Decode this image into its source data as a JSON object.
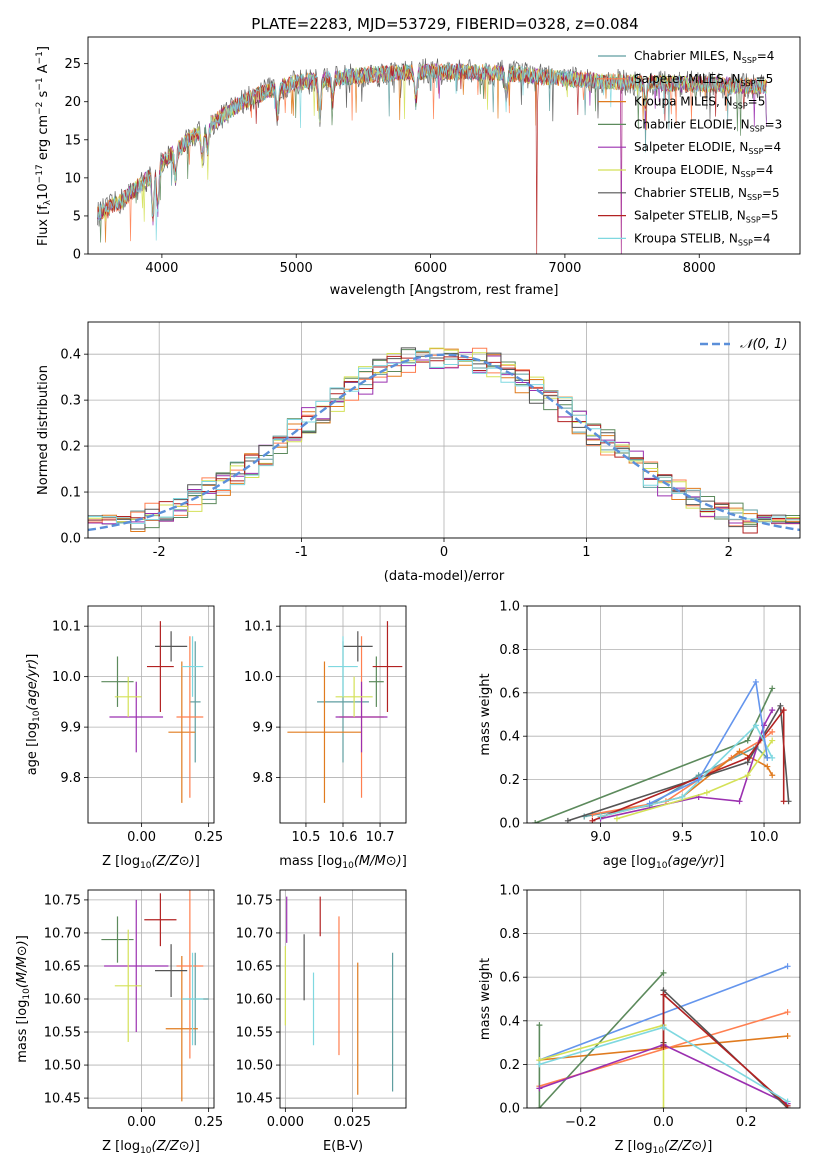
{
  "figure": {
    "title": "PLATE=2283, MJD=53729, FIBERID=0328, z=0.084"
  },
  "legend_models": [
    {
      "label": "Chabrier MILES, N",
      "sub": "SSP",
      "suffix": "=4",
      "color": "#5f9ea0"
    },
    {
      "label": "Salpeter MILES, N",
      "sub": "SSP",
      "suffix": "=5",
      "color": "#ff7f50"
    },
    {
      "label": "Kroupa MILES, N",
      "sub": "SSP",
      "suffix": "=5",
      "color": "#e07b1f"
    },
    {
      "label": "Chabrier ELODIE, N",
      "sub": "SSP",
      "suffix": "=3",
      "color": "#5c8a5c"
    },
    {
      "label": "Salpeter ELODIE, N",
      "sub": "SSP",
      "suffix": "=4",
      "color": "#9b30b0"
    },
    {
      "label": "Kroupa ELODIE, N",
      "sub": "SSP",
      "suffix": "=4",
      "color": "#d4e157"
    },
    {
      "label": "Chabrier STELIB, N",
      "sub": "SSP",
      "suffix": "=5",
      "color": "#555555"
    },
    {
      "label": "Salpeter STELIB, N",
      "sub": "SSP",
      "suffix": "=5",
      "color": "#b22222"
    },
    {
      "label": "Kroupa STELIB, N",
      "sub": "SSP",
      "suffix": "=4",
      "color": "#7fd8e0"
    }
  ],
  "chart_data": [
    {
      "id": "spectrum",
      "type": "line",
      "xlabel": "wavelength [Angstrom, rest frame]",
      "ylabel_parts": [
        "Flux [f",
        "λ",
        "10",
        "−17",
        " erg cm",
        "−2",
        " s",
        "−1",
        " A",
        "−1",
        "]"
      ],
      "xlim": [
        3450,
        8750
      ],
      "ylim": [
        0,
        28.5
      ],
      "xticks": [
        4000,
        5000,
        6000,
        7000,
        8000
      ],
      "yticks": [
        0,
        5,
        10,
        15,
        20,
        25
      ],
      "continuum_knots": [
        [
          3500,
          5.0
        ],
        [
          3700,
          7.0
        ],
        [
          3900,
          10.0
        ],
        [
          4000,
          12.0
        ],
        [
          4200,
          15.0
        ],
        [
          4400,
          17.5
        ],
        [
          4600,
          20.0
        ],
        [
          4800,
          21.5
        ],
        [
          5000,
          22.5
        ],
        [
          5500,
          23.5
        ],
        [
          6000,
          24.0
        ],
        [
          6500,
          23.8
        ],
        [
          7000,
          23.0
        ],
        [
          7500,
          22.5
        ],
        [
          8000,
          22.3
        ],
        [
          8500,
          22.0
        ]
      ],
      "absorption_lines": [
        [
          3934,
          6.0
        ],
        [
          3969,
          5.5
        ],
        [
          4102,
          3.5
        ],
        [
          4300,
          4.0
        ],
        [
          4340,
          3.0
        ],
        [
          4861,
          3.5
        ],
        [
          5175,
          5.0
        ],
        [
          5270,
          3.0
        ],
        [
          5890,
          4.0
        ],
        [
          6563,
          3.0
        ],
        [
          7600,
          3.0
        ]
      ],
      "drops_to_zero": [
        3915,
        6790,
        7420
      ],
      "grid": false
    },
    {
      "id": "residuals",
      "type": "histogram",
      "xlabel": "(data-model)/error",
      "ylabel": "Normed distribution",
      "xlim": [
        -2.5,
        2.5
      ],
      "ylim": [
        0,
        0.47
      ],
      "xticks": [
        -2,
        -1,
        0,
        1,
        2
      ],
      "yticks": [
        0.0,
        0.1,
        0.2,
        0.3,
        0.4
      ],
      "bin_width": 0.1,
      "reference_curve": "N(0,1)",
      "legend": "𝒩(0, 1)",
      "legend_position": "top-right",
      "grid": true
    },
    {
      "id": "age-vs-Z",
      "type": "scatter",
      "xlabel": "Z [log10(Z/Z⊙)]",
      "ylabel": "age  [log10(age/yr)]",
      "xlim": [
        -0.2,
        0.27
      ],
      "ylim": [
        9.71,
        10.14
      ],
      "xticks": [
        0.0,
        0.25
      ],
      "xticklabels": [
        "0.00",
        "0.25"
      ],
      "yticks": [
        9.8,
        9.9,
        10.0,
        10.1
      ],
      "points": [
        {
          "model": "Chabrier MILES",
          "x": 0.2,
          "y": 9.95,
          "xerr": 0.02,
          "yerr": 0.12
        },
        {
          "model": "Kroupa MILES",
          "x": 0.15,
          "y": 9.89,
          "xerr": 0.05,
          "yerr": 0.14
        },
        {
          "model": "Salpeter MILES",
          "x": 0.18,
          "y": 9.92,
          "xerr": 0.05,
          "yerr": 0.16
        },
        {
          "model": "Chabrier ELODIE",
          "x": -0.09,
          "y": 9.99,
          "xerr": 0.06,
          "yerr": 0.05
        },
        {
          "model": "Salpeter ELODIE",
          "x": -0.02,
          "y": 9.92,
          "xerr": 0.1,
          "yerr": 0.07
        },
        {
          "model": "Kroupa ELODIE",
          "x": -0.05,
          "y": 9.96,
          "xerr": 0.05,
          "yerr": 0.04
        },
        {
          "model": "Chabrier STELIB",
          "x": 0.11,
          "y": 10.06,
          "xerr": 0.06,
          "yerr": 0.03
        },
        {
          "model": "Salpeter STELIB",
          "x": 0.07,
          "y": 10.02,
          "xerr": 0.05,
          "yerr": 0.09
        },
        {
          "model": "Kroupa STELIB",
          "x": 0.19,
          "y": 10.02,
          "xerr": 0.04,
          "yerr": 0.06
        }
      ],
      "grid": true
    },
    {
      "id": "age-vs-mass",
      "type": "scatter",
      "xlabel": "mass [log10(M/M⊙)]",
      "ylabel": "",
      "xlim": [
        10.43,
        10.77
      ],
      "ylim": [
        9.71,
        10.14
      ],
      "xticks": [
        10.5,
        10.6,
        10.7
      ],
      "xticklabels": [
        "10.5",
        "10.6",
        "10.7"
      ],
      "yticks": [
        9.8,
        9.9,
        10.0,
        10.1
      ],
      "points": [
        {
          "model": "Chabrier MILES",
          "x": 10.6,
          "y": 9.95,
          "xerr": 0.07,
          "yerr": 0.12
        },
        {
          "model": "Kroupa MILES",
          "x": 10.55,
          "y": 9.89,
          "xerr": 0.1,
          "yerr": 0.14
        },
        {
          "model": "Salpeter MILES",
          "x": 10.65,
          "y": 9.92,
          "xerr": 0.06,
          "yerr": 0.16
        },
        {
          "model": "Chabrier ELODIE",
          "x": 10.69,
          "y": 9.99,
          "xerr": 0.02,
          "yerr": 0.05
        },
        {
          "model": "Salpeter ELODIE",
          "x": 10.65,
          "y": 9.92,
          "xerr": 0.07,
          "yerr": 0.07
        },
        {
          "model": "Kroupa ELODIE",
          "x": 10.63,
          "y": 9.96,
          "xerr": 0.05,
          "yerr": 0.04
        },
        {
          "model": "Chabrier STELIB",
          "x": 10.64,
          "y": 10.06,
          "xerr": 0.04,
          "yerr": 0.03
        },
        {
          "model": "Salpeter STELIB",
          "x": 10.72,
          "y": 10.02,
          "xerr": 0.04,
          "yerr": 0.09
        },
        {
          "model": "Kroupa STELIB",
          "x": 10.6,
          "y": 10.02,
          "xerr": 0.04,
          "yerr": 0.06
        }
      ],
      "grid": true
    },
    {
      "id": "weight-vs-age",
      "type": "line",
      "xlabel": "age  [log10(age/yr)]",
      "ylabel": "mass weight",
      "xlim": [
        8.55,
        10.22
      ],
      "ylim": [
        0,
        1.0
      ],
      "xticks": [
        9.0,
        9.5,
        10.0
      ],
      "xticklabels": [
        "9.0",
        "9.5",
        "10.0"
      ],
      "yticks": [
        0.0,
        0.2,
        0.4,
        0.6,
        0.8,
        1.0
      ],
      "series": [
        {
          "model": "Chabrier MILES",
          "x": [
            8.9,
            9.3,
            9.6,
            9.95,
            10.02
          ],
          "y": [
            0.03,
            0.08,
            0.22,
            0.35,
            0.3
          ]
        },
        {
          "model": "Salpeter MILES",
          "x": [
            8.95,
            9.4,
            9.8,
            9.98,
            10.05
          ],
          "y": [
            0.04,
            0.1,
            0.3,
            0.38,
            0.42
          ]
        },
        {
          "model": "Kroupa MILES",
          "x": [
            9.0,
            9.5,
            9.85,
            10.02,
            10.05
          ],
          "y": [
            0.03,
            0.12,
            0.33,
            0.26,
            0.22
          ]
        },
        {
          "model": "Chabrier ELODIE",
          "x": [
            8.6,
            9.9,
            10.05
          ],
          "y": [
            0.0,
            0.38,
            0.62
          ]
        },
        {
          "model": "Salpeter ELODIE",
          "x": [
            9.0,
            9.6,
            9.85,
            10.0,
            10.05
          ],
          "y": [
            0.02,
            0.12,
            0.1,
            0.45,
            0.52
          ]
        },
        {
          "model": "Kroupa ELODIE",
          "x": [
            9.1,
            9.65,
            9.9,
            10.05
          ],
          "y": [
            0.02,
            0.14,
            0.22,
            0.38
          ]
        },
        {
          "model": "Chabrier STELIB",
          "x": [
            8.8,
            9.9,
            10.1,
            10.15
          ],
          "y": [
            0.01,
            0.28,
            0.54,
            0.1
          ]
        },
        {
          "model": "Salpeter STELIB",
          "x": [
            8.95,
            9.9,
            10.12,
            10.12
          ],
          "y": [
            0.01,
            0.3,
            0.52,
            0.1
          ]
        },
        {
          "model": "Kroupa STELIB",
          "x": [
            9.0,
            9.5,
            9.95,
            10.05
          ],
          "y": [
            0.03,
            0.12,
            0.45,
            0.3
          ]
        },
        {
          "model": "Chabrier MILES (blue)",
          "x": [
            9.3,
            9.6,
            9.95,
            10.02
          ],
          "y": [
            0.09,
            0.2,
            0.65,
            0.3
          ]
        }
      ],
      "grid": true
    },
    {
      "id": "mass-vs-Z",
      "type": "scatter",
      "xlabel": "Z [log10(Z/Z⊙)]",
      "ylabel": "mass [log10(M/M⊙)]",
      "xlim": [
        -0.2,
        0.27
      ],
      "ylim": [
        10.435,
        10.765
      ],
      "xticks": [
        0.0,
        0.25
      ],
      "xticklabels": [
        "0.00",
        "0.25"
      ],
      "yticks": [
        10.45,
        10.5,
        10.55,
        10.6,
        10.65,
        10.7,
        10.75
      ],
      "points": [
        {
          "model": "Chabrier MILES",
          "x": 0.2,
          "y": 10.6,
          "xerr": 0.05,
          "yerr": 0.07
        },
        {
          "model": "Kroupa MILES",
          "x": 0.15,
          "y": 10.555,
          "xerr": 0.06,
          "yerr": 0.11
        },
        {
          "model": "Salpeter MILES",
          "x": 0.18,
          "y": 10.65,
          "xerr": 0.05,
          "yerr": 0.14
        },
        {
          "model": "Chabrier ELODIE",
          "x": -0.09,
          "y": 10.69,
          "xerr": 0.06,
          "yerr": 0.035
        },
        {
          "model": "Salpeter ELODIE",
          "x": -0.02,
          "y": 10.65,
          "xerr": 0.12,
          "yerr": 0.1
        },
        {
          "model": "Kroupa ELODIE",
          "x": -0.05,
          "y": 10.62,
          "xerr": 0.05,
          "yerr": 0.085
        },
        {
          "model": "Chabrier STELIB",
          "x": 0.11,
          "y": 10.643,
          "xerr": 0.06,
          "yerr": 0.04
        },
        {
          "model": "Salpeter STELIB",
          "x": 0.07,
          "y": 10.72,
          "xerr": 0.06,
          "yerr": 0.04
        },
        {
          "model": "Kroupa STELIB",
          "x": 0.19,
          "y": 10.6,
          "xerr": 0.04,
          "yerr": 0.07
        }
      ],
      "grid": true
    },
    {
      "id": "mass-vs-ebv",
      "type": "scatter",
      "xlabel": "E(B-V)",
      "ylabel": "",
      "xlim": [
        -0.002,
        0.045
      ],
      "ylim": [
        10.435,
        10.765
      ],
      "xticks": [
        0.0,
        0.025
      ],
      "xticklabels": [
        "0.000",
        "0.025"
      ],
      "yticks": [
        10.45,
        10.5,
        10.55,
        10.6,
        10.65,
        10.7,
        10.75
      ],
      "points": [
        {
          "model": "Chabrier MILES",
          "x": 0.04,
          "y": 10.565,
          "xerr": 0,
          "yerr": 0.105
        },
        {
          "model": "Kroupa MILES",
          "x": 0.027,
          "y": 10.555,
          "xerr": 0,
          "yerr": 0.1
        },
        {
          "model": "Salpeter MILES",
          "x": 0.02,
          "y": 10.62,
          "xerr": 0,
          "yerr": 0.105
        },
        {
          "model": "Salpeter ELODIE",
          "x": 0.0005,
          "y": 10.72,
          "xerr": 0,
          "yerr": 0.035
        },
        {
          "model": "Kroupa ELODIE",
          "x": 0.0,
          "y": 10.62,
          "xerr": 0,
          "yerr": 0.06
        },
        {
          "model": "Chabrier STELIB",
          "x": 0.007,
          "y": 10.648,
          "xerr": 0,
          "yerr": 0.05
        },
        {
          "model": "Salpeter STELIB",
          "x": 0.013,
          "y": 10.725,
          "xerr": 0,
          "yerr": 0.03
        },
        {
          "model": "Kroupa STELIB",
          "x": 0.0105,
          "y": 10.585,
          "xerr": 0,
          "yerr": 0.055
        }
      ],
      "grid": true
    },
    {
      "id": "weight-vs-Z",
      "type": "line",
      "xlabel": "Z [log10(Z/Z⊙)]",
      "ylabel": "mass weight",
      "xlim": [
        -0.33,
        0.33
      ],
      "ylim": [
        0,
        1.0
      ],
      "xticks": [
        -0.2,
        0.0,
        0.2
      ],
      "xticklabels": [
        "−0.2",
        "0.0",
        "0.2"
      ],
      "yticks": [
        0.0,
        0.2,
        0.4,
        0.6,
        0.8,
        1.0
      ],
      "series": [
        {
          "model": "Chabrier MILES (blue)",
          "x": [
            -0.3,
            0.3
          ],
          "y": [
            0.22,
            0.65
          ]
        },
        {
          "model": "Kroupa MILES",
          "x": [
            -0.3,
            0.3
          ],
          "y": [
            0.22,
            0.33
          ]
        },
        {
          "model": "Salpeter MILES",
          "x": [
            -0.3,
            0.3
          ],
          "y": [
            0.1,
            0.44
          ]
        },
        {
          "model": "Chabrier ELODIE",
          "x": [
            -0.3,
            -0.3,
            0.0
          ],
          "y": [
            0.38,
            0.0,
            0.62
          ]
        },
        {
          "model": "Salpeter ELODIE",
          "x": [
            -0.3,
            0.0,
            0.3
          ],
          "y": [
            0.09,
            0.29,
            0.02
          ]
        },
        {
          "model": "Kroupa ELODIE",
          "x": [
            -0.3,
            0.0,
            0.0
          ],
          "y": [
            0.22,
            0.38,
            0.0
          ]
        },
        {
          "model": "Chabrier STELIB",
          "x": [
            0.0,
            0.0,
            0.3
          ],
          "y": [
            0.3,
            0.54,
            0.0
          ]
        },
        {
          "model": "Salpeter STELIB",
          "x": [
            0.0,
            0.0,
            0.3
          ],
          "y": [
            0.28,
            0.52,
            0.01
          ]
        },
        {
          "model": "Kroupa STELIB",
          "x": [
            -0.3,
            0.0,
            0.3
          ],
          "y": [
            0.2,
            0.37,
            0.03
          ]
        }
      ],
      "grid": true
    }
  ]
}
